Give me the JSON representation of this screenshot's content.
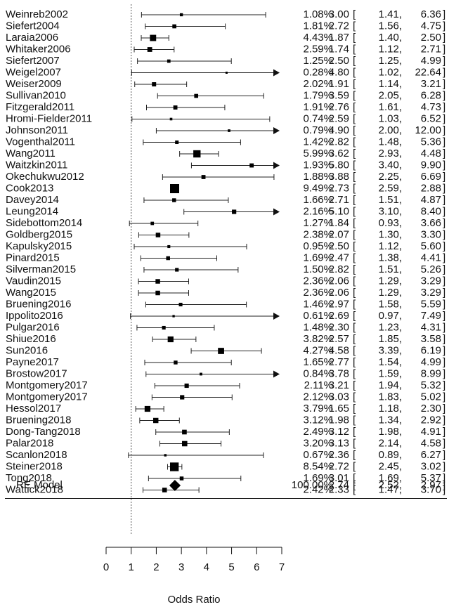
{
  "chart_data": {
    "type": "forest",
    "xlabel": "Odds Ratio",
    "xlim": [
      0,
      7
    ],
    "x_ticks": [
      0,
      1,
      2,
      3,
      4,
      5,
      6,
      7
    ],
    "reference_line": 1,
    "studies": [
      {
        "study": "Weinreb2002",
        "weight": "1.08%",
        "or": 3.0,
        "lo": 1.41,
        "hi": 6.36,
        "ci_text": "3.00 [1.41, 6.36]"
      },
      {
        "study": "Siefert2004",
        "weight": "1.81%",
        "or": 2.72,
        "lo": 1.56,
        "hi": 4.75,
        "ci_text": "2.72 [1.56, 4.75]"
      },
      {
        "study": "Laraia2006",
        "weight": "4.43%",
        "or": 1.87,
        "lo": 1.4,
        "hi": 2.5,
        "ci_text": "1.87 [1.40, 2.50]"
      },
      {
        "study": "Whitaker2006",
        "weight": "2.59%",
        "or": 1.74,
        "lo": 1.12,
        "hi": 2.71,
        "ci_text": "1.74 [1.12, 2.71]"
      },
      {
        "study": "Siefert2007",
        "weight": "1.25%",
        "or": 2.5,
        "lo": 1.25,
        "hi": 4.99,
        "ci_text": "2.50 [1.25, 4.99]"
      },
      {
        "study": "Weigel2007",
        "weight": "0.28%",
        "or": 4.8,
        "lo": 1.02,
        "hi": 22.64,
        "ci_text": "4.80 [1.02, 22.64]"
      },
      {
        "study": "Weiser2009",
        "weight": "2.02%",
        "or": 1.91,
        "lo": 1.14,
        "hi": 3.21,
        "ci_text": "1.91 [1.14, 3.21]"
      },
      {
        "study": "Sullivan2010",
        "weight": "1.79%",
        "or": 3.59,
        "lo": 2.05,
        "hi": 6.28,
        "ci_text": "3.59 [2.05, 6.28]"
      },
      {
        "study": "Fitzgerald2011",
        "weight": "1.91%",
        "or": 2.76,
        "lo": 1.61,
        "hi": 4.73,
        "ci_text": "2.76 [1.61, 4.73]"
      },
      {
        "study": "Hromi-Fielder2011",
        "weight": "0.74%",
        "or": 2.59,
        "lo": 1.03,
        "hi": 6.52,
        "ci_text": "2.59 [1.03, 6.52]"
      },
      {
        "study": "Johnson2011",
        "weight": "0.79%",
        "or": 4.9,
        "lo": 2.0,
        "hi": 12.0,
        "ci_text": "4.90 [2.00, 12.00]"
      },
      {
        "study": "Vogenthal2011",
        "weight": "1.42%",
        "or": 2.82,
        "lo": 1.48,
        "hi": 5.36,
        "ci_text": "2.82 [1.48, 5.36]"
      },
      {
        "study": "Wang2011",
        "weight": "5.99%",
        "or": 3.62,
        "lo": 2.93,
        "hi": 4.48,
        "ci_text": "3.62 [2.93, 4.48]"
      },
      {
        "study": "Waitzkin2011",
        "weight": "1.93%",
        "or": 5.8,
        "lo": 3.4,
        "hi": 9.9,
        "ci_text": "5.80 [3.40, 9.90]"
      },
      {
        "study": "Okechukwu2012",
        "weight": "1.88%",
        "or": 3.88,
        "lo": 2.25,
        "hi": 6.69,
        "ci_text": "3.88 [2.25, 6.69]"
      },
      {
        "study": "Cook2013",
        "weight": "9.49%",
        "or": 2.73,
        "lo": 2.59,
        "hi": 2.88,
        "ci_text": "2.73 [2.59, 2.88]"
      },
      {
        "study": "Davey2014",
        "weight": "1.66%",
        "or": 2.71,
        "lo": 1.51,
        "hi": 4.87,
        "ci_text": "2.71 [1.51, 4.87]"
      },
      {
        "study": "Leung2014",
        "weight": "2.16%",
        "or": 5.1,
        "lo": 3.1,
        "hi": 8.4,
        "ci_text": "5.10 [3.10, 8.40]"
      },
      {
        "study": "Sidebottom2014",
        "weight": "1.27%",
        "or": 1.84,
        "lo": 0.93,
        "hi": 3.66,
        "ci_text": "1.84 [0.93, 3.66]"
      },
      {
        "study": "Goldberg2015",
        "weight": "2.38%",
        "or": 2.07,
        "lo": 1.3,
        "hi": 3.3,
        "ci_text": "2.07 [1.30, 3.30]"
      },
      {
        "study": "Kapulsky2015",
        "weight": "0.95%",
        "or": 2.5,
        "lo": 1.12,
        "hi": 5.6,
        "ci_text": "2.50 [1.12, 5.60]"
      },
      {
        "study": "Pinard2015",
        "weight": "1.69%",
        "or": 2.47,
        "lo": 1.38,
        "hi": 4.41,
        "ci_text": "2.47 [1.38, 4.41]"
      },
      {
        "study": "Silverman2015",
        "weight": "1.50%",
        "or": 2.82,
        "lo": 1.51,
        "hi": 5.26,
        "ci_text": "2.82 [1.51, 5.26]"
      },
      {
        "study": "Vaudin2015",
        "weight": "2.36%",
        "or": 2.06,
        "lo": 1.29,
        "hi": 3.29,
        "ci_text": "2.06 [1.29, 3.29]"
      },
      {
        "study": "Wang2015",
        "weight": "2.36%",
        "or": 2.06,
        "lo": 1.29,
        "hi": 3.29,
        "ci_text": "2.06 [1.29, 3.29]"
      },
      {
        "study": "Bruening2016",
        "weight": "1.46%",
        "or": 2.97,
        "lo": 1.58,
        "hi": 5.59,
        "ci_text": "2.97 [1.58, 5.59]"
      },
      {
        "study": "Ippolito2016",
        "weight": "0.61%",
        "or": 2.69,
        "lo": 0.97,
        "hi": 7.49,
        "ci_text": "2.69 [0.97, 7.49]"
      },
      {
        "study": "Pulgar2016",
        "weight": "1.48%",
        "or": 2.3,
        "lo": 1.23,
        "hi": 4.31,
        "ci_text": "2.30 [1.23, 4.31]"
      },
      {
        "study": "Shiue2016",
        "weight": "3.82%",
        "or": 2.57,
        "lo": 1.85,
        "hi": 3.58,
        "ci_text": "2.57 [1.85, 3.58]"
      },
      {
        "study": "Sun2016",
        "weight": "4.27%",
        "or": 4.58,
        "lo": 3.39,
        "hi": 6.19,
        "ci_text": "4.58 [3.39, 6.19]"
      },
      {
        "study": "Payne2017",
        "weight": "1.65%",
        "or": 2.77,
        "lo": 1.54,
        "hi": 4.99,
        "ci_text": "2.77 [1.54, 4.99]"
      },
      {
        "study": "Brostow2017",
        "weight": "0.84%",
        "or": 3.78,
        "lo": 1.59,
        "hi": 8.99,
        "ci_text": "3.78 [1.59, 8.99]"
      },
      {
        "study": "Montgomery2017",
        "weight": "2.11%",
        "or": 3.21,
        "lo": 1.94,
        "hi": 5.32,
        "ci_text": "3.21 [1.94, 5.32]"
      },
      {
        "study": "Montgomery2017",
        "weight": "2.12%",
        "or": 3.03,
        "lo": 1.83,
        "hi": 5.02,
        "ci_text": "3.03 [1.83, 5.02]"
      },
      {
        "study": "Hessol2017",
        "weight": "3.79%",
        "or": 1.65,
        "lo": 1.18,
        "hi": 2.3,
        "ci_text": "1.65 [1.18, 2.30]"
      },
      {
        "study": "Bruening2018",
        "weight": "3.12%",
        "or": 1.98,
        "lo": 1.34,
        "hi": 2.92,
        "ci_text": "1.98 [1.34, 2.92]"
      },
      {
        "study": "Dong-Tang2018",
        "weight": "2.49%",
        "or": 3.12,
        "lo": 1.98,
        "hi": 4.91,
        "ci_text": "3.12 [1.98, 4.91]"
      },
      {
        "study": "Palar2018",
        "weight": "3.20%",
        "or": 3.13,
        "lo": 2.14,
        "hi": 4.58,
        "ci_text": "3.13 [2.14, 4.58]"
      },
      {
        "study": "Scanlon2018",
        "weight": "0.67%",
        "or": 2.36,
        "lo": 0.89,
        "hi": 6.27,
        "ci_text": "2.36 [0.89, 6.27]"
      },
      {
        "study": "Steiner2018",
        "weight": "8.54%",
        "or": 2.72,
        "lo": 2.45,
        "hi": 3.02,
        "ci_text": "2.72 [2.45, 3.02]"
      },
      {
        "study": "Tong2018",
        "weight": "1.69%",
        "or": 3.01,
        "lo": 1.69,
        "hi": 5.37,
        "ci_text": "3.01 [1.69, 5.37]"
      },
      {
        "study": "Wattick2018",
        "weight": "2.42%",
        "or": 2.33,
        "lo": 1.47,
        "hi": 3.7,
        "ci_text": "2.33 [1.47, 3.70]"
      }
    ],
    "summary": {
      "label": "RE Model",
      "weight": "100.00%",
      "or": 2.74,
      "lo": 2.52,
      "hi": 2.97,
      "ci_text": "2.74 [2.52, 2.97]"
    }
  }
}
